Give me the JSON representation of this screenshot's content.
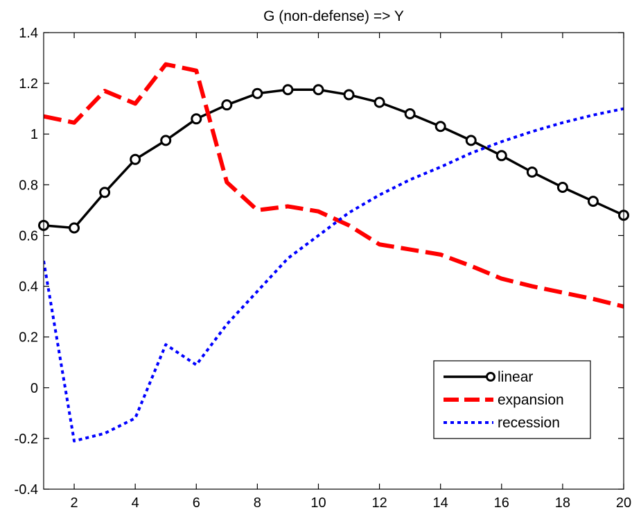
{
  "chart_data": {
    "type": "line",
    "title": "G (non-defense) => Y",
    "xlabel": "",
    "ylabel": "",
    "xlim": [
      1,
      20
    ],
    "ylim": [
      -0.4,
      1.4
    ],
    "xticks": [
      2,
      4,
      6,
      8,
      10,
      12,
      14,
      16,
      18,
      20
    ],
    "yticks": [
      -0.4,
      -0.2,
      0,
      0.2,
      0.4,
      0.6,
      0.8,
      1,
      1.2,
      1.4
    ],
    "xtick_labels": [
      "2",
      "4",
      "6",
      "8",
      "10",
      "12",
      "14",
      "16",
      "18",
      "20"
    ],
    "ytick_labels": [
      "-0.4",
      "-0.2",
      "0",
      "0.2",
      "0.4",
      "0.6",
      "0.8",
      "1",
      "1.2",
      "1.4"
    ],
    "grid": false,
    "legend_position": "bottom-right",
    "x": [
      1,
      2,
      3,
      4,
      5,
      6,
      7,
      8,
      9,
      10,
      11,
      12,
      13,
      14,
      15,
      16,
      17,
      18,
      19,
      20
    ],
    "series": [
      {
        "name": "linear",
        "color": "#000000",
        "style": "solid",
        "marker": "circle",
        "values": [
          0.64,
          0.63,
          0.77,
          0.9,
          0.975,
          1.06,
          1.115,
          1.16,
          1.175,
          1.175,
          1.155,
          1.125,
          1.08,
          1.03,
          0.975,
          0.915,
          0.85,
          0.79,
          0.735,
          0.68
        ]
      },
      {
        "name": "expansion",
        "color": "#ff0000",
        "style": "dashed",
        "marker": "none",
        "values": [
          1.07,
          1.045,
          1.17,
          1.12,
          1.275,
          1.25,
          0.81,
          0.7,
          0.715,
          0.695,
          0.64,
          0.565,
          0.545,
          0.525,
          0.48,
          0.43,
          0.4,
          0.375,
          0.35,
          0.32
        ]
      },
      {
        "name": "recession",
        "color": "#0000ff",
        "style": "dotted",
        "marker": "none",
        "values": [
          0.5,
          -0.21,
          -0.18,
          -0.12,
          0.17,
          0.09,
          0.25,
          0.38,
          0.51,
          0.6,
          0.69,
          0.76,
          0.82,
          0.87,
          0.925,
          0.97,
          1.01,
          1.045,
          1.075,
          1.1
        ]
      }
    ]
  }
}
